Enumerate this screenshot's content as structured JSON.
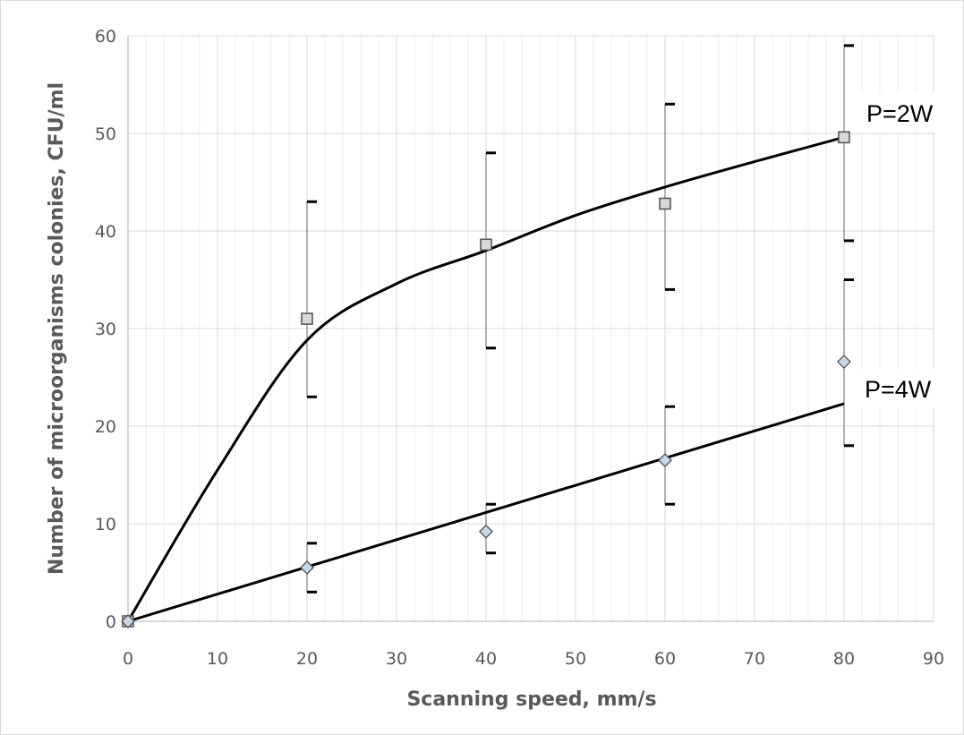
{
  "chart_data": {
    "type": "scatter",
    "title": "",
    "xlabel": "Scanning speed, mm/s",
    "ylabel": "Number of microorganisms colonies, CFU/ml",
    "xlim": [
      0,
      90
    ],
    "ylim": [
      0,
      60
    ],
    "x_ticks": [
      "0",
      "10",
      "20",
      "30",
      "40",
      "50",
      "60",
      "70",
      "80",
      "90"
    ],
    "y_ticks": [
      "0",
      "10",
      "20",
      "30",
      "40",
      "50",
      "60"
    ],
    "grid": true,
    "legend": "none",
    "series": [
      {
        "name": "P=2W",
        "marker": "square",
        "color": "#595959",
        "fill": "#d9d9d9",
        "x": [
          0,
          20,
          40,
          60,
          80
        ],
        "y": [
          0,
          31,
          38.6,
          42.8,
          49.6
        ],
        "err_low": [
          0,
          23,
          28,
          34,
          39
        ],
        "err_high": [
          0,
          43,
          48,
          53,
          59
        ],
        "trend_x": [
          0,
          10,
          20,
          30,
          40,
          50,
          60,
          70,
          80
        ],
        "trend_y": [
          0,
          15.5,
          28.8,
          34.6,
          38,
          41.6,
          44.5,
          47.1,
          49.6
        ]
      },
      {
        "name": "P=4W",
        "marker": "diamond",
        "color": "#595959",
        "fill": "#c6d9e8",
        "x": [
          0,
          20,
          40,
          60,
          80
        ],
        "y": [
          0,
          5.5,
          9.2,
          16.5,
          26.6
        ],
        "err_low": [
          0,
          3,
          7,
          12,
          18
        ],
        "err_high": [
          0,
          8,
          12,
          22,
          35
        ],
        "trend_x": [
          0,
          80
        ],
        "trend_y": [
          0,
          22.3
        ]
      }
    ]
  },
  "colors": {
    "grid": "#d9d9d9",
    "axis": "#bfbfbf",
    "text": "#595959",
    "line": "#000000"
  }
}
